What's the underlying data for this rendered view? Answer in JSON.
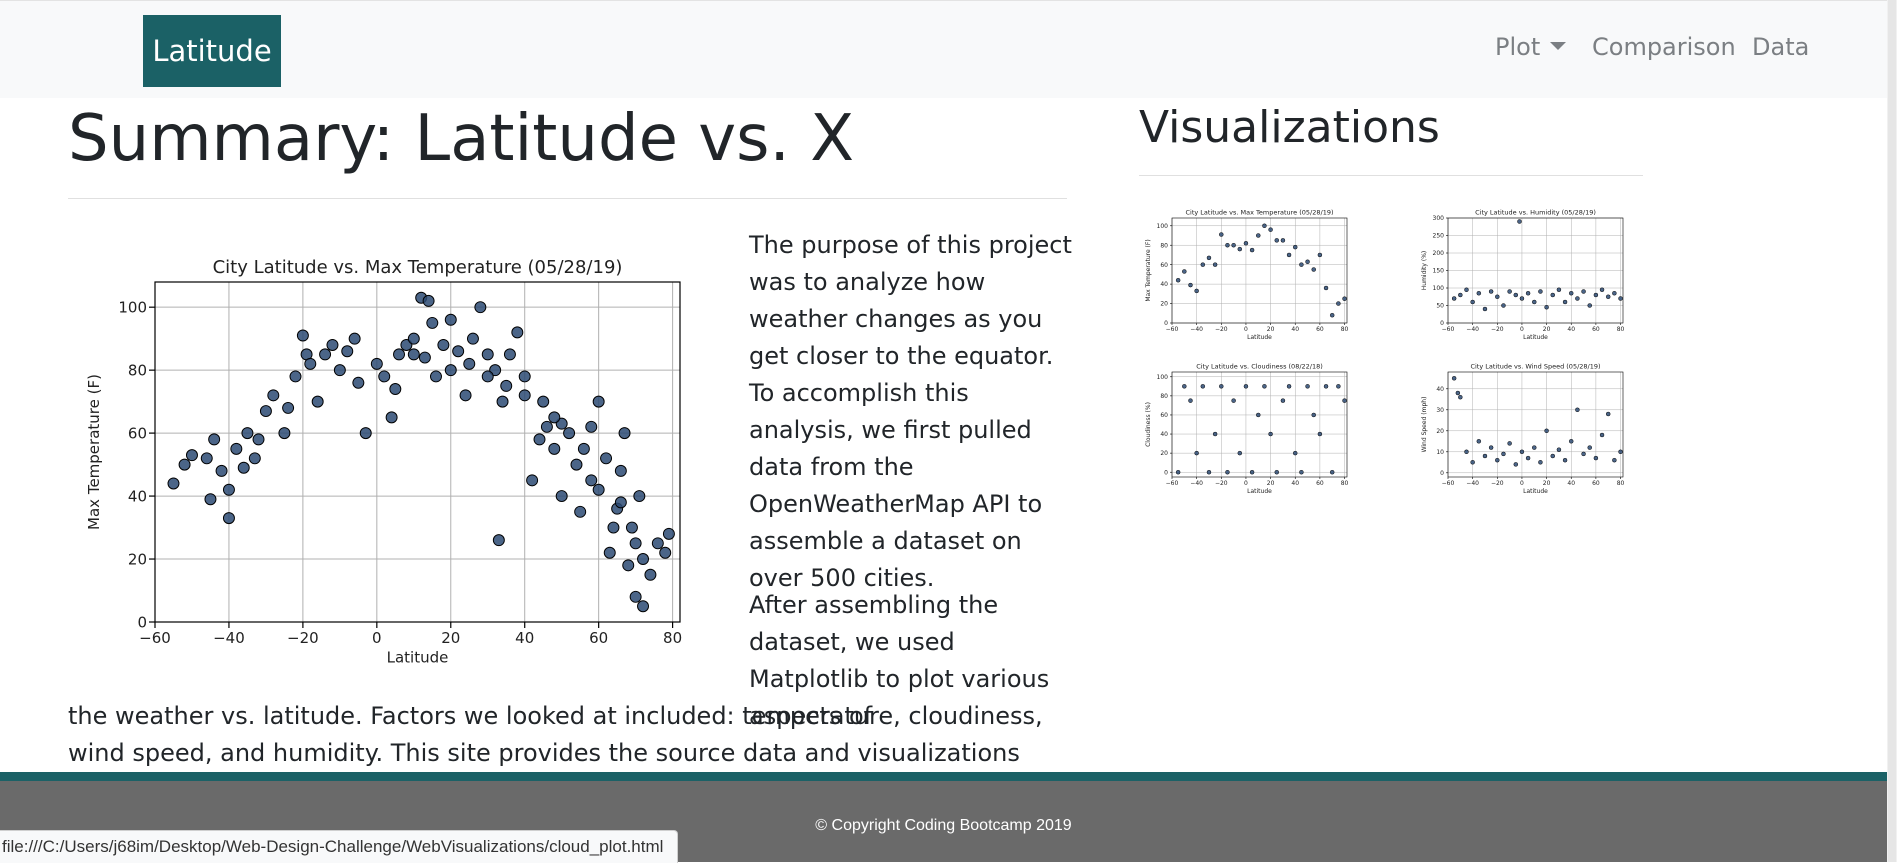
{
  "navbar": {
    "brand": "Latitude",
    "items": [
      {
        "label": "Plot",
        "dropdown": true
      },
      {
        "label": "Comparison"
      },
      {
        "label": "Data"
      }
    ]
  },
  "main": {
    "title": "Summary: Latitude vs. X",
    "paragraph1": "The purpose of this project was to analyze how weather changes as you get closer to the equator. To accomplish this analysis, we first pulled data from the OpenWeatherMap API to assemble a dataset on over 500 cities.",
    "paragraph2_a": "After assembling the dataset, we used Matplotlib to plot various aspects of",
    "paragraph2_b": "the weather vs. latitude. Factors we looked at included: temperature, cloudiness, wind speed, and humidity. This site provides the source data and visualizations created as part"
  },
  "sidebar": {
    "title": "Visualizations"
  },
  "chart_data": [
    {
      "type": "scatter",
      "title": "City Latitude vs. Max Temperature (05/28/19)",
      "xlabel": "Latitude",
      "ylabel": "Max Temperature (F)",
      "xlim": [
        -60,
        82
      ],
      "ylim": [
        0,
        108
      ],
      "xticks": [
        -60,
        -40,
        -20,
        0,
        20,
        40,
        60,
        80
      ],
      "yticks": [
        0,
        20,
        40,
        60,
        80,
        100
      ],
      "grid": true,
      "point_count": 500,
      "trend": "peak near latitude 15 (about 85-100 F), falling toward both poles",
      "points": [
        [
          -55,
          44
        ],
        [
          -52,
          50
        ],
        [
          -50,
          53
        ],
        [
          -46,
          52
        ],
        [
          -45,
          39
        ],
        [
          -44,
          58
        ],
        [
          -42,
          48
        ],
        [
          -40,
          33
        ],
        [
          -40,
          42
        ],
        [
          -38,
          55
        ],
        [
          -36,
          49
        ],
        [
          -35,
          60
        ],
        [
          -33,
          52
        ],
        [
          -30,
          67
        ],
        [
          -28,
          72
        ],
        [
          -25,
          60
        ],
        [
          -22,
          78
        ],
        [
          -20,
          91
        ],
        [
          -19,
          85
        ],
        [
          -18,
          82
        ],
        [
          -16,
          70
        ],
        [
          -12,
          88
        ],
        [
          -10,
          80
        ],
        [
          -8,
          86
        ],
        [
          -5,
          76
        ],
        [
          -3,
          60
        ],
        [
          0,
          82
        ],
        [
          2,
          78
        ],
        [
          4,
          65
        ],
        [
          6,
          85
        ],
        [
          8,
          88
        ],
        [
          10,
          90
        ],
        [
          12,
          103
        ],
        [
          13,
          84
        ],
        [
          14,
          102
        ],
        [
          15,
          95
        ],
        [
          16,
          78
        ],
        [
          18,
          88
        ],
        [
          20,
          96
        ],
        [
          22,
          86
        ],
        [
          24,
          72
        ],
        [
          26,
          90
        ],
        [
          28,
          100
        ],
        [
          30,
          85
        ],
        [
          32,
          80
        ],
        [
          33,
          26
        ],
        [
          34,
          70
        ],
        [
          36,
          85
        ],
        [
          38,
          92
        ],
        [
          40,
          78
        ],
        [
          42,
          45
        ],
        [
          44,
          58
        ],
        [
          46,
          62
        ],
        [
          48,
          55
        ],
        [
          50,
          63
        ],
        [
          52,
          60
        ],
        [
          54,
          50
        ],
        [
          56,
          55
        ],
        [
          58,
          45
        ],
        [
          60,
          70
        ],
        [
          62,
          52
        ],
        [
          63,
          22
        ],
        [
          65,
          36
        ],
        [
          66,
          48
        ],
        [
          67,
          60
        ],
        [
          68,
          18
        ],
        [
          69,
          30
        ],
        [
          70,
          8
        ],
        [
          71,
          40
        ],
        [
          72,
          5
        ],
        [
          74,
          15
        ],
        [
          78,
          22
        ],
        [
          79,
          28
        ],
        [
          45,
          70
        ],
        [
          35,
          75
        ],
        [
          25,
          82
        ],
        [
          5,
          74
        ],
        [
          -6,
          90
        ],
        [
          -14,
          85
        ],
        [
          -24,
          68
        ],
        [
          -32,
          58
        ],
        [
          50,
          40
        ],
        [
          55,
          35
        ],
        [
          60,
          42
        ],
        [
          64,
          30
        ],
        [
          70,
          25
        ],
        [
          72,
          20
        ],
        [
          76,
          25
        ],
        [
          10,
          85
        ],
        [
          20,
          80
        ],
        [
          30,
          78
        ],
        [
          40,
          72
        ],
        [
          48,
          65
        ],
        [
          58,
          62
        ],
        [
          66,
          38
        ]
      ]
    },
    {
      "type": "scatter",
      "title": "City Latitude vs. Max Temperature (05/28/19)",
      "xlabel": "Latitude",
      "ylabel": "Max Temperature (F)",
      "xlim": [
        -60,
        82
      ],
      "ylim": [
        0,
        108
      ],
      "xticks": [
        -60,
        -40,
        -20,
        0,
        20,
        40,
        60,
        80
      ],
      "yticks": [
        0,
        20,
        40,
        60,
        80,
        100
      ],
      "grid": true,
      "point_count": 500,
      "points": [
        [
          -55,
          44
        ],
        [
          -50,
          53
        ],
        [
          -45,
          39
        ],
        [
          -40,
          33
        ],
        [
          -35,
          60
        ],
        [
          -30,
          67
        ],
        [
          -25,
          60
        ],
        [
          -20,
          91
        ],
        [
          -15,
          80
        ],
        [
          -10,
          80
        ],
        [
          -5,
          76
        ],
        [
          0,
          82
        ],
        [
          5,
          75
        ],
        [
          10,
          90
        ],
        [
          15,
          100
        ],
        [
          20,
          96
        ],
        [
          25,
          85
        ],
        [
          30,
          85
        ],
        [
          35,
          70
        ],
        [
          40,
          78
        ],
        [
          45,
          60
        ],
        [
          50,
          63
        ],
        [
          55,
          55
        ],
        [
          60,
          70
        ],
        [
          65,
          36
        ],
        [
          70,
          8
        ],
        [
          75,
          20
        ],
        [
          80,
          25
        ]
      ]
    },
    {
      "type": "scatter",
      "title": "City Latitude vs. Humidity (05/28/19)",
      "xlabel": "Latitude",
      "ylabel": "Humidity (%)",
      "xlim": [
        -60,
        82
      ],
      "ylim": [
        0,
        300
      ],
      "xticks": [
        -60,
        -40,
        -20,
        0,
        20,
        40,
        60,
        80
      ],
      "yticks": [
        0,
        50,
        100,
        150,
        200,
        250,
        300
      ],
      "grid": true,
      "point_count": 500,
      "points": [
        [
          -55,
          70
        ],
        [
          -50,
          80
        ],
        [
          -45,
          95
        ],
        [
          -40,
          60
        ],
        [
          -35,
          85
        ],
        [
          -30,
          40
        ],
        [
          -25,
          90
        ],
        [
          -20,
          75
        ],
        [
          -15,
          50
        ],
        [
          -10,
          90
        ],
        [
          -5,
          80
        ],
        [
          -2,
          290
        ],
        [
          0,
          70
        ],
        [
          5,
          85
        ],
        [
          10,
          60
        ],
        [
          15,
          90
        ],
        [
          20,
          45
        ],
        [
          25,
          80
        ],
        [
          30,
          95
        ],
        [
          35,
          60
        ],
        [
          40,
          85
        ],
        [
          45,
          70
        ],
        [
          50,
          90
        ],
        [
          55,
          50
        ],
        [
          60,
          80
        ],
        [
          65,
          95
        ],
        [
          70,
          75
        ],
        [
          75,
          85
        ],
        [
          80,
          70
        ]
      ]
    },
    {
      "type": "scatter",
      "title": "City Latitude vs. Cloudiness (08/22/18)",
      "xlabel": "Latitude",
      "ylabel": "Cloudiness (%)",
      "xlim": [
        -60,
        82
      ],
      "ylim": [
        -5,
        105
      ],
      "xticks": [
        -60,
        -40,
        -20,
        0,
        20,
        40,
        60,
        80
      ],
      "yticks": [
        0,
        20,
        40,
        60,
        80,
        100
      ],
      "grid": true,
      "point_count": 500,
      "points": [
        [
          -55,
          0
        ],
        [
          -50,
          90
        ],
        [
          -45,
          75
        ],
        [
          -40,
          20
        ],
        [
          -35,
          90
        ],
        [
          -30,
          0
        ],
        [
          -25,
          40
        ],
        [
          -20,
          90
        ],
        [
          -15,
          0
        ],
        [
          -10,
          75
        ],
        [
          -5,
          20
        ],
        [
          0,
          90
        ],
        [
          5,
          0
        ],
        [
          10,
          60
        ],
        [
          15,
          90
        ],
        [
          20,
          40
        ],
        [
          25,
          0
        ],
        [
          30,
          75
        ],
        [
          35,
          90
        ],
        [
          40,
          20
        ],
        [
          45,
          0
        ],
        [
          50,
          90
        ],
        [
          55,
          60
        ],
        [
          60,
          40
        ],
        [
          65,
          90
        ],
        [
          70,
          0
        ],
        [
          75,
          90
        ],
        [
          80,
          75
        ]
      ]
    },
    {
      "type": "scatter",
      "title": "City Latitude vs. Wind Speed (05/28/19)",
      "xlabel": "Latitude",
      "ylabel": "Wind Speed (mph)",
      "xlim": [
        -60,
        82
      ],
      "ylim": [
        -2,
        48
      ],
      "xticks": [
        -60,
        -40,
        -20,
        0,
        20,
        40,
        60,
        80
      ],
      "yticks": [
        0,
        10,
        20,
        30,
        40
      ],
      "grid": true,
      "point_count": 500,
      "points": [
        [
          -55,
          45
        ],
        [
          -52,
          38
        ],
        [
          -50,
          36
        ],
        [
          -45,
          10
        ],
        [
          -40,
          5
        ],
        [
          -35,
          15
        ],
        [
          -30,
          8
        ],
        [
          -25,
          12
        ],
        [
          -20,
          6
        ],
        [
          -15,
          9
        ],
        [
          -10,
          14
        ],
        [
          -5,
          4
        ],
        [
          0,
          10
        ],
        [
          5,
          7
        ],
        [
          10,
          12
        ],
        [
          15,
          5
        ],
        [
          20,
          20
        ],
        [
          25,
          8
        ],
        [
          30,
          11
        ],
        [
          35,
          6
        ],
        [
          40,
          15
        ],
        [
          45,
          30
        ],
        [
          50,
          9
        ],
        [
          55,
          12
        ],
        [
          60,
          7
        ],
        [
          65,
          18
        ],
        [
          70,
          28
        ],
        [
          75,
          6
        ],
        [
          80,
          10
        ]
      ]
    }
  ],
  "footer": {
    "copyright": "© Copyright Coding Bootcamp 2019"
  },
  "statusbar": {
    "url": "file:///C:/Users/j68im/Desktop/Web-Design-Challenge/WebVisualizations/cloud_plot.html"
  }
}
